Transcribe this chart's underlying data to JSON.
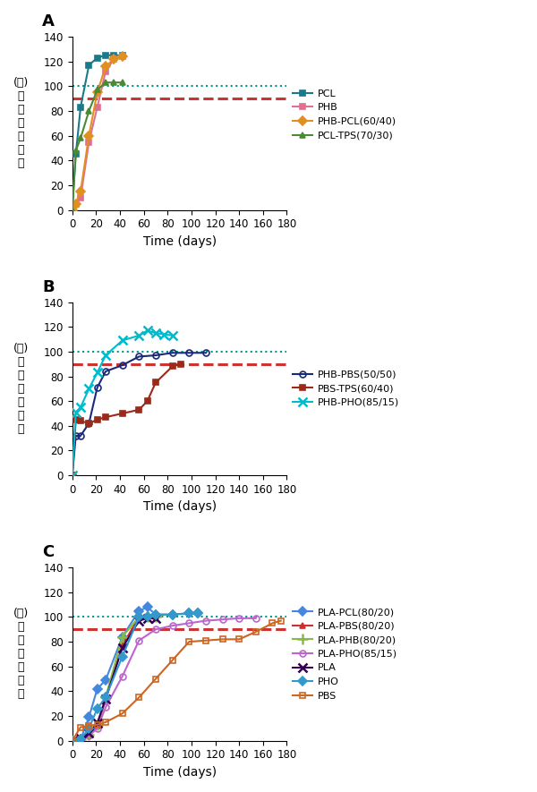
{
  "panel_A": {
    "title": "A",
    "ylim": [
      0,
      140
    ],
    "xlim": [
      0,
      180
    ],
    "yticks": [
      0,
      20,
      40,
      60,
      80,
      100,
      120,
      140
    ],
    "xticks": [
      0,
      20,
      40,
      60,
      80,
      100,
      120,
      140,
      160,
      180
    ],
    "hline_dotted": 100,
    "hline_dashed": 90,
    "series": [
      {
        "label": "PCL",
        "color": "#1a7a8a",
        "marker": "s",
        "markerface": "color",
        "x": [
          0,
          3,
          7,
          14,
          21,
          28,
          35,
          42
        ],
        "y": [
          0,
          45,
          83,
          117,
          123,
          125,
          125,
          125
        ]
      },
      {
        "label": "PHB",
        "color": "#e07090",
        "marker": "s",
        "markerface": "color",
        "x": [
          0,
          3,
          7,
          14,
          21,
          28,
          35,
          42
        ],
        "y": [
          0,
          5,
          10,
          55,
          83,
          112,
          122,
          124
        ]
      },
      {
        "label": "PHB-PCL(60/40)",
        "color": "#e09020",
        "marker": "D",
        "markerface": "color",
        "x": [
          0,
          3,
          7,
          14,
          21,
          28,
          35,
          42
        ],
        "y": [
          0,
          5,
          15,
          60,
          95,
          116,
          122,
          124
        ]
      },
      {
        "label": "PCL-TPS(70/30)",
        "color": "#4a8a30",
        "marker": "^",
        "markerface": "color",
        "x": [
          0,
          3,
          7,
          14,
          21,
          28,
          35,
          42
        ],
        "y": [
          0,
          48,
          58,
          80,
          97,
          103,
          103,
          103
        ]
      }
    ]
  },
  "panel_B": {
    "title": "B",
    "ylim": [
      0,
      140
    ],
    "xlim": [
      0,
      180
    ],
    "yticks": [
      0,
      20,
      40,
      60,
      80,
      100,
      120,
      140
    ],
    "xticks": [
      0,
      20,
      40,
      60,
      80,
      100,
      120,
      140,
      160,
      180
    ],
    "hline_dotted": 100,
    "hline_dashed": 90,
    "series": [
      {
        "label": "PHB-PBS(50/50)",
        "color": "#1a2a7a",
        "marker": "o",
        "markerface": "none",
        "x": [
          0,
          3,
          7,
          14,
          21,
          28,
          42,
          56,
          70,
          84,
          98,
          112
        ],
        "y": [
          0,
          32,
          32,
          42,
          71,
          84,
          89,
          96,
          97,
          99,
          99,
          99
        ]
      },
      {
        "label": "PBS-TPS(60/40)",
        "color": "#9b2a1a",
        "marker": "s",
        "markerface": "color",
        "x": [
          0,
          3,
          7,
          14,
          21,
          28,
          42,
          56,
          63,
          70,
          84,
          91
        ],
        "y": [
          0,
          45,
          44,
          42,
          45,
          47,
          50,
          53,
          60,
          75,
          88,
          90
        ]
      },
      {
        "label": "PHB-PHO(85/15)",
        "color": "#00bbcc",
        "marker": "x",
        "markerface": "color",
        "x": [
          0,
          3,
          7,
          14,
          21,
          28,
          42,
          56,
          63,
          70,
          77,
          84
        ],
        "y": [
          0,
          51,
          55,
          70,
          83,
          97,
          109,
          113,
          117,
          115,
          114,
          113
        ]
      }
    ]
  },
  "panel_C": {
    "title": "C",
    "ylim": [
      0,
      140
    ],
    "xlim": [
      0,
      180
    ],
    "yticks": [
      0,
      20,
      40,
      60,
      80,
      100,
      120,
      140
    ],
    "xticks": [
      0,
      20,
      40,
      60,
      80,
      100,
      120,
      140,
      160,
      180
    ],
    "hline_dotted": 100,
    "hline_dashed": 90,
    "series": [
      {
        "label": "PLA-PCL(80/20)",
        "color": "#4488dd",
        "marker": "D",
        "markerface": "color",
        "x": [
          0,
          7,
          14,
          21,
          28,
          42,
          56,
          63,
          70,
          84,
          98,
          105
        ],
        "y": [
          0,
          1,
          19,
          42,
          49,
          84,
          105,
          108,
          102,
          102,
          103,
          103
        ]
      },
      {
        "label": "PLA-PBS(80/20)",
        "color": "#cc3030",
        "marker": "^",
        "markerface": "color",
        "x": [
          0,
          7,
          14,
          21,
          28,
          42,
          56,
          63,
          70
        ],
        "y": [
          0,
          1,
          5,
          12,
          33,
          77,
          100,
          100,
          100
        ]
      },
      {
        "label": "PLA-PHB(80/20)",
        "color": "#88bb44",
        "marker": "+",
        "markerface": "color",
        "x": [
          0,
          7,
          14,
          21,
          28,
          42,
          56,
          63,
          70
        ],
        "y": [
          0,
          1,
          5,
          13,
          35,
          84,
          100,
          100,
          100
        ]
      },
      {
        "label": "PLA-PHO(85/15)",
        "color": "#bb66cc",
        "marker": "o",
        "markerface": "none",
        "x": [
          0,
          7,
          14,
          21,
          28,
          42,
          56,
          70,
          84,
          98,
          112,
          126,
          140,
          154
        ],
        "y": [
          0,
          1,
          4,
          10,
          27,
          52,
          81,
          90,
          93,
          95,
          97,
          98,
          99,
          99
        ]
      },
      {
        "label": "PLA",
        "color": "#330055",
        "marker": "x",
        "markerface": "color",
        "x": [
          0,
          7,
          14,
          21,
          28,
          42,
          56,
          63,
          70
        ],
        "y": [
          0,
          2,
          6,
          14,
          34,
          75,
          97,
          99,
          99
        ]
      },
      {
        "label": "PHO",
        "color": "#3399cc",
        "marker": "D",
        "markerface": "color",
        "x": [
          0,
          7,
          14,
          21,
          28,
          42,
          56,
          63,
          70,
          84,
          98,
          105
        ],
        "y": [
          0,
          1,
          10,
          26,
          35,
          68,
          100,
          100,
          102,
          102,
          103,
          103
        ]
      },
      {
        "label": "PBS",
        "color": "#cc6622",
        "marker": "s",
        "markerface": "none",
        "x": [
          0,
          7,
          14,
          21,
          28,
          42,
          56,
          70,
          84,
          98,
          112,
          126,
          140,
          154,
          168,
          175
        ],
        "y": [
          0,
          11,
          12,
          13,
          15,
          22,
          35,
          50,
          65,
          80,
          81,
          82,
          82,
          88,
          95,
          97
        ]
      }
    ]
  },
  "ylabel_chars": [
    "相",
    "对",
    "生",
    "物",
    "降",
    "解"
  ],
  "ylabel_pct": "(％)",
  "xlabel": "Time (days)",
  "hline_dotted_color": "#009988",
  "hline_dashed_color": "#cc3333",
  "bg_color": "#ffffff"
}
